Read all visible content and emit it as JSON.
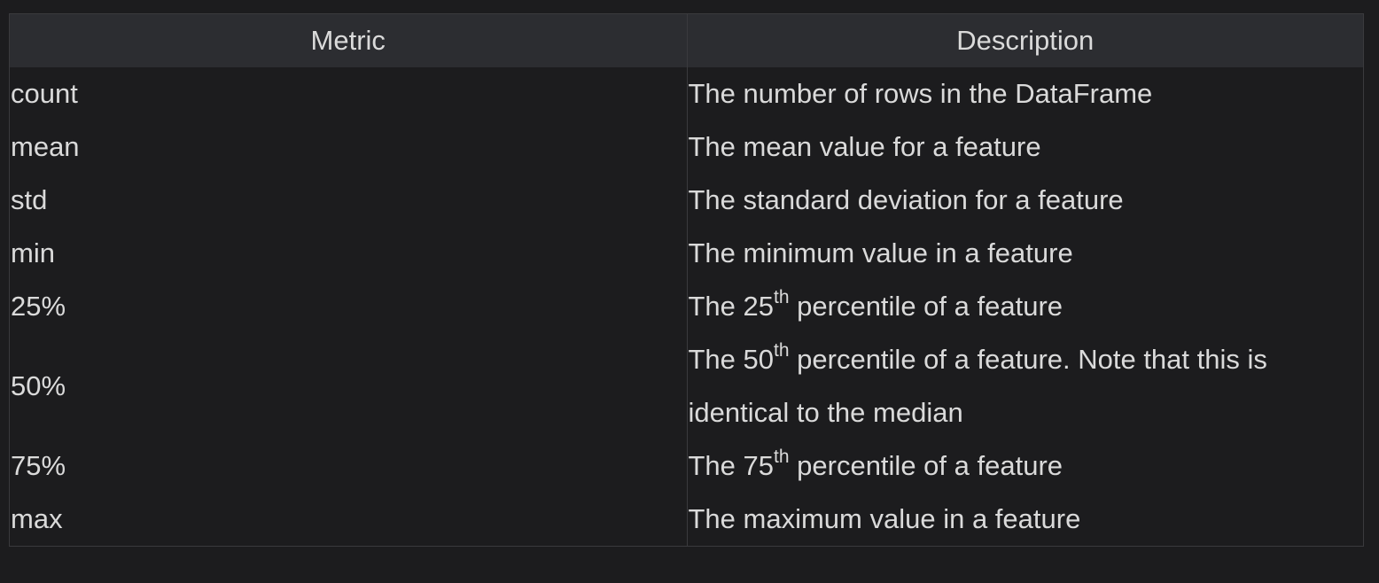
{
  "table": {
    "headers": {
      "metric": "Metric",
      "description": "Description"
    },
    "rows": [
      {
        "metric": "count",
        "desc_pre": "The number of rows in the DataFrame",
        "desc_sup": "",
        "desc_post": ""
      },
      {
        "metric": "mean",
        "desc_pre": "The mean value for a feature",
        "desc_sup": "",
        "desc_post": ""
      },
      {
        "metric": "std",
        "desc_pre": "The standard deviation for a feature",
        "desc_sup": "",
        "desc_post": ""
      },
      {
        "metric": "min",
        "desc_pre": "The minimum value in a feature",
        "desc_sup": "",
        "desc_post": ""
      },
      {
        "metric": "25%",
        "desc_pre": "The 25",
        "desc_sup": "th",
        "desc_post": " percentile of a feature"
      },
      {
        "metric": "50%",
        "desc_pre": "The 50",
        "desc_sup": "th",
        "desc_post": " percentile of a feature. Note that this is identical to the median"
      },
      {
        "metric": "75%",
        "desc_pre": "The 75",
        "desc_sup": "th",
        "desc_post": " percentile of a feature"
      },
      {
        "metric": "max",
        "desc_pre": "The maximum value in a feature",
        "desc_sup": "",
        "desc_post": ""
      }
    ]
  },
  "colors": {
    "background": "#1c1c1e",
    "header_background": "#2c2d31",
    "border": "#3a3a3d",
    "text": "#dadada"
  }
}
